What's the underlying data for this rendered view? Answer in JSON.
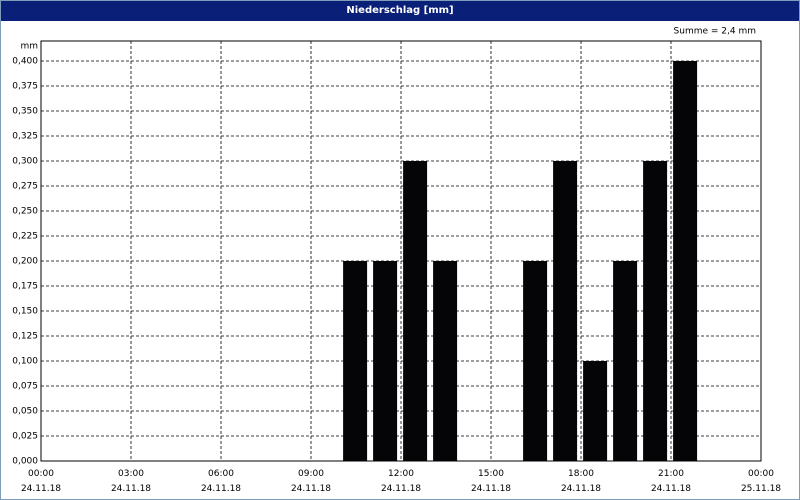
{
  "chart_data": {
    "type": "bar",
    "title": "Niederschlag [mm]",
    "ylabel": "mm",
    "annotation": "Summe = 2,4 mm",
    "x": [
      10,
      11,
      12,
      13,
      16,
      17,
      18,
      19,
      20,
      21
    ],
    "values": [
      0.2,
      0.2,
      0.3,
      0.2,
      0.2,
      0.3,
      0.1,
      0.2,
      0.3,
      0.4
    ],
    "color": "#050508",
    "xlim": [
      0,
      24
    ],
    "xticks": [
      {
        "value": 0,
        "label": "00:00\n24.11.18"
      },
      {
        "value": 3,
        "label": "03:00\n24.11.18"
      },
      {
        "value": 6,
        "label": "06:00\n24.11.18"
      },
      {
        "value": 9,
        "label": "09:00\n24.11.18"
      },
      {
        "value": 12,
        "label": "12:00\n24.11.18"
      },
      {
        "value": 15,
        "label": "15:00\n24.11.18"
      },
      {
        "value": 18,
        "label": "18:00\n24.11.18"
      },
      {
        "value": 21,
        "label": "21:00\n24.11.18"
      },
      {
        "value": 24,
        "label": "00:00\n25.11.18"
      }
    ],
    "ylim": [
      0,
      0.42
    ],
    "yticks": [
      {
        "value": 0,
        "label": "0,000"
      },
      {
        "value": 0.025,
        "label": "0,025"
      },
      {
        "value": 0.05,
        "label": "0,050"
      },
      {
        "value": 0.075,
        "label": "0,075"
      },
      {
        "value": 0.1,
        "label": "0,100"
      },
      {
        "value": 0.125,
        "label": "0,125"
      },
      {
        "value": 0.15,
        "label": "0,150"
      },
      {
        "value": 0.175,
        "label": "0,175"
      },
      {
        "value": 0.2,
        "label": "0,200"
      },
      {
        "value": 0.225,
        "label": "0,225"
      },
      {
        "value": 0.25,
        "label": "0,250"
      },
      {
        "value": 0.275,
        "label": "0,275"
      },
      {
        "value": 0.3,
        "label": "0,300"
      },
      {
        "value": 0.325,
        "label": "0,325"
      },
      {
        "value": 0.35,
        "label": "0,350"
      },
      {
        "value": 0.375,
        "label": "0,375"
      },
      {
        "value": 0.4,
        "label": "0,400"
      }
    ],
    "grid": true
  }
}
